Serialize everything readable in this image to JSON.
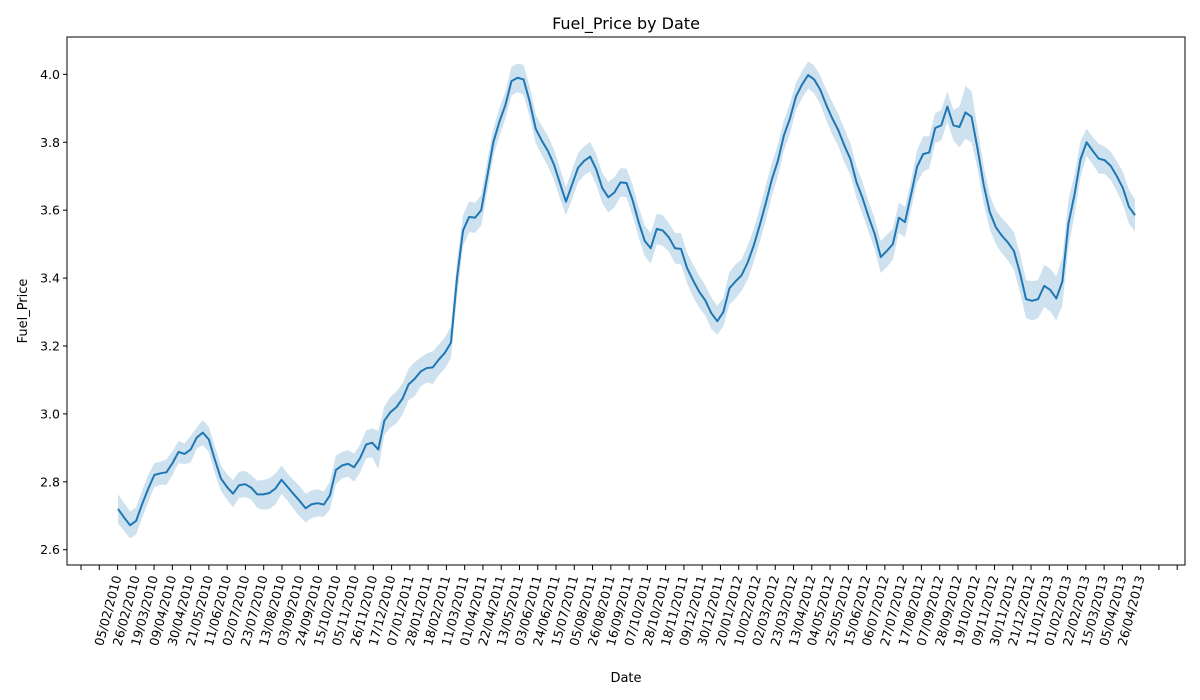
{
  "chart_data": {
    "type": "line",
    "title": "Fuel_Price by Date",
    "xlabel": "Date",
    "ylabel": "Fuel_Price",
    "ylim": [
      2.555,
      4.11
    ],
    "yticks": [
      2.6,
      2.8,
      3.0,
      3.2,
      3.4,
      3.6,
      3.8,
      4.0
    ],
    "ytick_labels": [
      "2.6",
      "2.8",
      "3.0",
      "3.2",
      "3.4",
      "3.6",
      "3.8",
      "4.0"
    ],
    "xtick_labels": [
      "05/02/2010",
      "26/02/2010",
      "19/03/2010",
      "09/04/2010",
      "30/04/2010",
      "21/05/2010",
      "11/06/2010",
      "02/07/2010",
      "23/07/2010",
      "13/08/2010",
      "03/09/2010",
      "24/09/2010",
      "15/10/2010",
      "05/11/2010",
      "26/11/2010",
      "17/12/2010",
      "07/01/2011",
      "28/01/2011",
      "18/02/2011",
      "11/03/2011",
      "01/04/2011",
      "22/04/2011",
      "13/05/2011",
      "03/06/2011",
      "24/06/2011",
      "15/07/2011",
      "05/08/2011",
      "26/08/2011",
      "16/09/2011",
      "07/10/2011",
      "28/10/2011",
      "18/11/2011",
      "09/12/2011",
      "30/12/2011",
      "20/01/2012",
      "10/02/2012",
      "02/03/2012",
      "23/03/2012",
      "13/04/2012",
      "04/05/2012",
      "25/05/2012",
      "15/06/2012",
      "06/07/2012",
      "27/07/2012",
      "17/08/2012",
      "07/09/2012",
      "28/09/2012",
      "19/10/2012",
      "09/11/2012",
      "30/11/2012",
      "21/12/2012",
      "11/01/2013",
      "01/02/2013",
      "22/02/2013",
      "15/03/2013",
      "05/04/2013",
      "26/04/2013"
    ],
    "grid": false,
    "line_color": "#1f77b4",
    "band_color": "#1f77b4",
    "series": [
      {
        "values": [
          2.72,
          2.695,
          2.672,
          2.685,
          2.735,
          2.78,
          2.82,
          2.825,
          2.828,
          2.855,
          2.888,
          2.882,
          2.895,
          2.93,
          2.945,
          2.925,
          2.865,
          2.81,
          2.785,
          2.765,
          2.79,
          2.793,
          2.783,
          2.763,
          2.763,
          2.767,
          2.78,
          2.806,
          2.785,
          2.764,
          2.744,
          2.722,
          2.734,
          2.737,
          2.733,
          2.76,
          2.835,
          2.848,
          2.853,
          2.843,
          2.87,
          2.91,
          2.915,
          2.895,
          2.98,
          3.005,
          3.02,
          3.045,
          3.087,
          3.103,
          3.125,
          3.135,
          3.137,
          3.16,
          3.18,
          3.21,
          3.4,
          3.54,
          3.58,
          3.578,
          3.6,
          3.7,
          3.8,
          3.86,
          3.91,
          3.98,
          3.99,
          3.985,
          3.92,
          3.84,
          3.805,
          3.775,
          3.735,
          3.68,
          3.625,
          3.675,
          3.725,
          3.745,
          3.758,
          3.72,
          3.665,
          3.638,
          3.652,
          3.682,
          3.68,
          3.63,
          3.565,
          3.51,
          3.488,
          3.545,
          3.54,
          3.52,
          3.488,
          3.486,
          3.43,
          3.393,
          3.36,
          3.335,
          3.297,
          3.273,
          3.3,
          3.37,
          3.39,
          3.408,
          3.445,
          3.495,
          3.555,
          3.62,
          3.69,
          3.745,
          3.82,
          3.87,
          3.935,
          3.97,
          3.998,
          3.985,
          3.955,
          3.91,
          3.87,
          3.835,
          3.79,
          3.75,
          3.682,
          3.635,
          3.58,
          3.53,
          3.462,
          3.48,
          3.5,
          3.578,
          3.565,
          3.645,
          3.728,
          3.765,
          3.77,
          3.842,
          3.85,
          3.905,
          3.85,
          3.845,
          3.888,
          3.875,
          3.78,
          3.675,
          3.595,
          3.55,
          3.525,
          3.505,
          3.48,
          3.415,
          3.338,
          3.333,
          3.338,
          3.377,
          3.365,
          3.34,
          3.39,
          3.56,
          3.645,
          3.75,
          3.8,
          3.775,
          3.752,
          3.747,
          3.73,
          3.7,
          3.665,
          3.61,
          3.585
        ],
        "ci_lower": [
          2.678,
          2.655,
          2.633,
          2.645,
          2.695,
          2.74,
          2.785,
          2.791,
          2.791,
          2.82,
          2.855,
          2.852,
          2.857,
          2.898,
          2.908,
          2.888,
          2.825,
          2.773,
          2.748,
          2.725,
          2.753,
          2.755,
          2.748,
          2.723,
          2.718,
          2.72,
          2.733,
          2.764,
          2.745,
          2.72,
          2.698,
          2.68,
          2.693,
          2.698,
          2.697,
          2.718,
          2.793,
          2.81,
          2.815,
          2.8,
          2.828,
          2.869,
          2.872,
          2.838,
          2.938,
          2.96,
          2.972,
          2.998,
          3.04,
          3.052,
          3.081,
          3.093,
          3.088,
          3.115,
          3.133,
          3.165,
          3.345,
          3.495,
          3.535,
          3.533,
          3.555,
          3.655,
          3.76,
          3.818,
          3.87,
          3.938,
          3.948,
          3.94,
          3.875,
          3.797,
          3.762,
          3.73,
          3.69,
          3.634,
          3.585,
          3.632,
          3.682,
          3.703,
          3.713,
          3.675,
          3.62,
          3.593,
          3.608,
          3.64,
          3.638,
          3.584,
          3.52,
          3.465,
          3.443,
          3.5,
          3.495,
          3.478,
          3.443,
          3.44,
          3.385,
          3.345,
          3.313,
          3.29,
          3.25,
          3.233,
          3.258,
          3.322,
          3.34,
          3.362,
          3.395,
          3.446,
          3.505,
          3.568,
          3.642,
          3.698,
          3.775,
          3.825,
          3.895,
          3.93,
          3.958,
          3.944,
          3.913,
          3.865,
          3.822,
          3.788,
          3.74,
          3.704,
          3.635,
          3.588,
          3.535,
          3.485,
          3.415,
          3.432,
          3.455,
          3.533,
          3.52,
          3.603,
          3.68,
          3.713,
          3.722,
          3.798,
          3.805,
          3.86,
          3.805,
          3.785,
          3.81,
          3.8,
          3.72,
          3.62,
          3.545,
          3.5,
          3.473,
          3.452,
          3.425,
          3.358,
          3.282,
          3.275,
          3.282,
          3.315,
          3.302,
          3.275,
          3.32,
          3.49,
          3.585,
          3.697,
          3.76,
          3.735,
          3.708,
          3.707,
          3.688,
          3.656,
          3.617,
          3.56,
          3.538
        ],
        "ci_upper": [
          2.763,
          2.738,
          2.713,
          2.725,
          2.775,
          2.82,
          2.855,
          2.86,
          2.866,
          2.89,
          2.92,
          2.913,
          2.935,
          2.96,
          2.982,
          2.962,
          2.905,
          2.848,
          2.823,
          2.805,
          2.83,
          2.832,
          2.82,
          2.803,
          2.805,
          2.81,
          2.824,
          2.848,
          2.825,
          2.805,
          2.788,
          2.765,
          2.775,
          2.778,
          2.771,
          2.8,
          2.877,
          2.888,
          2.893,
          2.883,
          2.91,
          2.952,
          2.957,
          2.95,
          3.022,
          3.05,
          3.066,
          3.09,
          3.133,
          3.152,
          3.167,
          3.178,
          3.184,
          3.205,
          3.225,
          3.258,
          3.45,
          3.585,
          3.625,
          3.622,
          3.645,
          3.745,
          3.84,
          3.9,
          3.95,
          4.022,
          4.032,
          4.028,
          3.965,
          3.883,
          3.848,
          3.82,
          3.78,
          3.724,
          3.668,
          3.718,
          3.768,
          3.788,
          3.801,
          3.765,
          3.71,
          3.683,
          3.697,
          3.724,
          3.722,
          3.676,
          3.61,
          3.555,
          3.533,
          3.59,
          3.585,
          3.562,
          3.533,
          3.532,
          3.475,
          3.44,
          3.407,
          3.38,
          3.343,
          3.318,
          3.342,
          3.418,
          3.44,
          3.455,
          3.495,
          3.544,
          3.605,
          3.672,
          3.738,
          3.792,
          3.865,
          3.915,
          3.975,
          4.01,
          4.038,
          4.026,
          3.997,
          3.955,
          3.918,
          3.882,
          3.84,
          3.796,
          3.729,
          3.682,
          3.625,
          3.575,
          3.509,
          3.528,
          3.545,
          3.623,
          3.61,
          3.687,
          3.776,
          3.817,
          3.818,
          3.886,
          3.895,
          3.95,
          3.895,
          3.905,
          3.966,
          3.95,
          3.84,
          3.73,
          3.645,
          3.6,
          3.577,
          3.558,
          3.535,
          3.472,
          3.394,
          3.391,
          3.394,
          3.439,
          3.428,
          3.405,
          3.46,
          3.63,
          3.705,
          3.803,
          3.84,
          3.815,
          3.796,
          3.787,
          3.772,
          3.744,
          3.713,
          3.66,
          3.632
        ]
      }
    ]
  }
}
